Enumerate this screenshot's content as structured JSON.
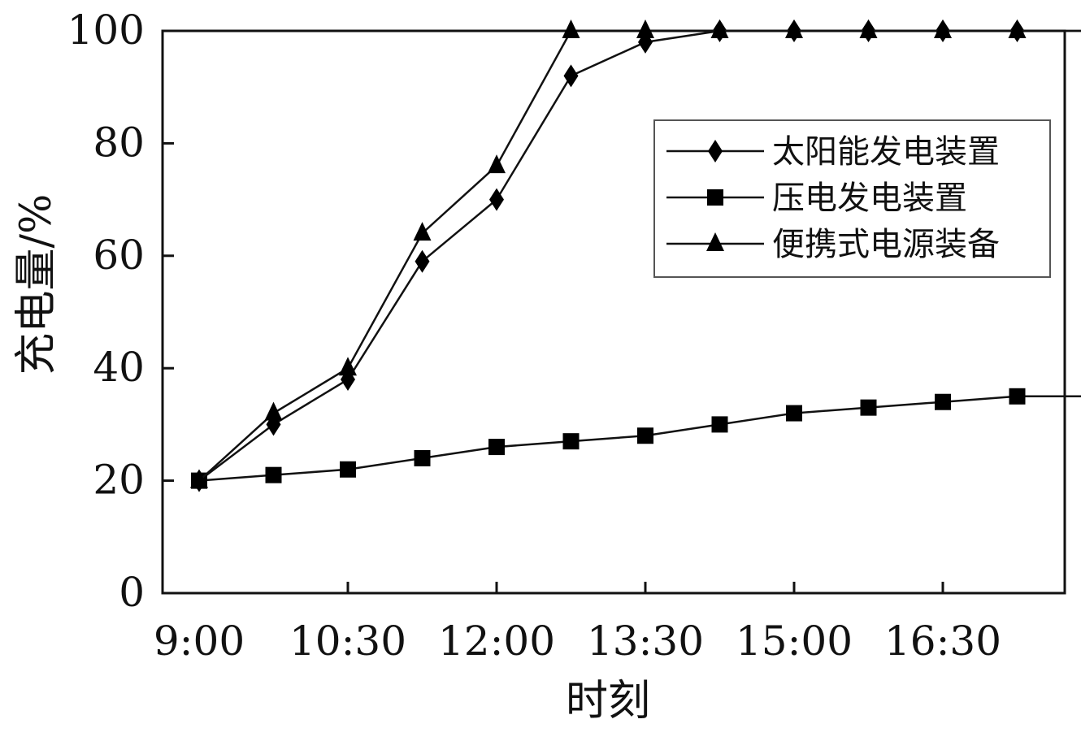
{
  "chart_data": {
    "type": "line",
    "title": "",
    "xlabel": "时刻",
    "ylabel": "充电量/%",
    "x": [
      "9:00",
      "9:45",
      "10:30",
      "11:15",
      "12:00",
      "12:45",
      "13:30",
      "14:15",
      "15:00",
      "15:45",
      "16:30",
      "17:15",
      "18:00"
    ],
    "xticks": [
      "9:00",
      "10:30",
      "12:00",
      "13:30",
      "15:00",
      "16:30"
    ],
    "yticks": [
      "0",
      "20",
      "40",
      "60",
      "80",
      "100"
    ],
    "ylim": [
      0,
      100
    ],
    "grid": false,
    "legend": "top-right",
    "series": [
      {
        "name": "太阳能发电装置",
        "marker": "diamond",
        "values": [
          20,
          30,
          38,
          59,
          70,
          92,
          98,
          100,
          100,
          100,
          100,
          100,
          100
        ]
      },
      {
        "name": "压电发电装置",
        "marker": "square",
        "values": [
          20,
          21,
          22,
          24,
          26,
          27,
          28,
          30,
          32,
          33,
          34,
          35,
          35
        ]
      },
      {
        "name": "便携式电源装备",
        "marker": "triangle",
        "values": [
          20,
          32,
          40,
          64,
          76,
          100,
          100,
          100,
          100,
          100,
          100,
          100,
          100
        ]
      }
    ],
    "colors": {
      "line": "#111111",
      "marker": "#000000",
      "legend_border": "#555555"
    }
  }
}
